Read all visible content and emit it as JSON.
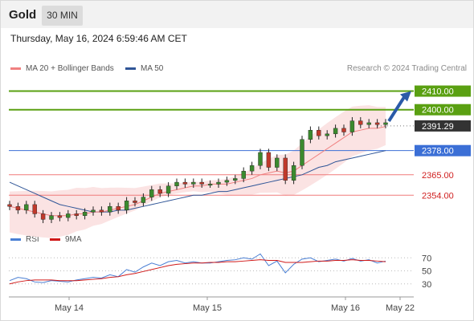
{
  "header": {
    "symbol": "Gold",
    "timeframe": "30 MIN"
  },
  "datetime": "Thursday, May 16, 2024 6:59:46 AM CET",
  "credit": "Research © 2024 Trading Central",
  "legend_main": [
    {
      "label": "MA 20 + Bollinger Bands",
      "color": "#f08080"
    },
    {
      "label": "MA 50",
      "color": "#2f5597"
    }
  ],
  "legend_rsi": [
    {
      "label": "RSI",
      "color": "#4a7fd4"
    },
    {
      "label": "9MA",
      "color": "#d01818"
    }
  ],
  "colors": {
    "resistance": "#5aa012",
    "pivot": "#3b6fd6",
    "support": "#f07a7a",
    "price_tag": "#333333",
    "arrow": "#2a5aa8"
  },
  "chart_data": {
    "type": "candlestick",
    "price_axis_range": [
      2336,
      2418
    ],
    "x_tick_labels": [
      "May 14",
      "May 15",
      "May 16",
      "May 22"
    ],
    "levels": [
      {
        "value": 2410.0,
        "label": "2410.00",
        "kind": "resistance"
      },
      {
        "value": 2400.0,
        "label": "2400.00",
        "kind": "resistance"
      },
      {
        "value": 2391.29,
        "label": "2391.29",
        "kind": "last"
      },
      {
        "value": 2378.0,
        "label": "2378.00",
        "kind": "pivot"
      },
      {
        "value": 2365.0,
        "label": "2365.00",
        "kind": "support"
      },
      {
        "value": 2354.0,
        "label": "2354.00",
        "kind": "support"
      }
    ],
    "close_path": [
      2348,
      2346,
      2349,
      2344,
      2341,
      2343,
      2342,
      2344,
      2343,
      2345,
      2346,
      2345,
      2348,
      2346,
      2351,
      2350,
      2353,
      2357,
      2355,
      2359,
      2361,
      2360,
      2361,
      2360,
      2360,
      2361,
      2362,
      2363,
      2367,
      2370,
      2377,
      2369,
      2374,
      2362,
      2370,
      2384,
      2389,
      2386,
      2387,
      2390,
      2388,
      2394,
      2392,
      2393,
      2392,
      2393
    ],
    "ma20_path": [
      2348,
      2347,
      2346,
      2345,
      2344,
      2343,
      2343,
      2343,
      2344,
      2344,
      2345,
      2345,
      2346,
      2347,
      2348,
      2349,
      2351,
      2353,
      2355,
      2356,
      2357,
      2358,
      2359,
      2359,
      2360,
      2360,
      2360,
      2361,
      2362,
      2363,
      2365,
      2366,
      2367,
      2366,
      2367,
      2370,
      2373,
      2376,
      2379,
      2382,
      2385,
      2388,
      2389,
      2390,
      2390,
      2391
    ],
    "ma50_path": [
      2361,
      2359,
      2357,
      2355,
      2353,
      2351,
      2349,
      2348,
      2347,
      2346,
      2345,
      2345,
      2345,
      2346,
      2346,
      2347,
      2348,
      2349,
      2350,
      2351,
      2352,
      2353,
      2354,
      2354,
      2355,
      2356,
      2356,
      2357,
      2358,
      2359,
      2360,
      2361,
      2362,
      2363,
      2364,
      2365,
      2367,
      2369,
      2370,
      2372,
      2373,
      2374,
      2375,
      2376,
      2377,
      2378
    ],
    "rsi": {
      "range": [
        10,
        90
      ],
      "grid": [
        70,
        50,
        30
      ],
      "rsi_path": [
        35,
        40,
        38,
        33,
        32,
        35,
        34,
        33,
        36,
        38,
        40,
        39,
        44,
        41,
        52,
        48,
        56,
        62,
        58,
        64,
        66,
        62,
        64,
        62,
        62,
        64,
        66,
        67,
        70,
        68,
        76,
        58,
        65,
        47,
        60,
        68,
        70,
        64,
        66,
        68,
        65,
        69,
        65,
        67,
        62,
        65
      ],
      "ma_path": [
        30,
        33,
        35,
        36,
        36,
        36,
        35,
        35,
        35,
        36,
        37,
        38,
        40,
        41,
        44,
        46,
        49,
        52,
        55,
        58,
        60,
        61,
        62,
        62,
        63,
        63,
        64,
        64,
        65,
        66,
        67,
        66,
        66,
        63,
        63,
        63,
        64,
        65,
        65,
        66,
        66,
        67,
        66,
        66,
        65,
        64
      ],
      "tick_labels": [
        "70",
        "50",
        "30"
      ]
    }
  }
}
